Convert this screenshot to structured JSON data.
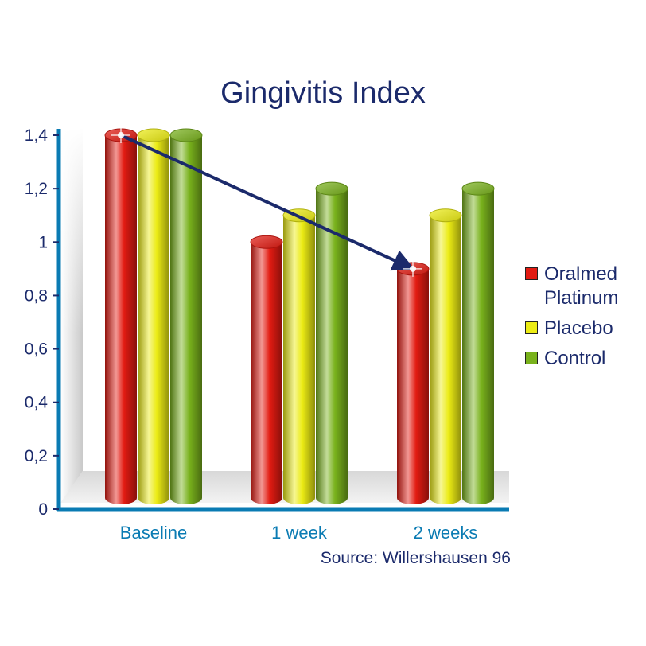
{
  "chart_data": {
    "type": "bar",
    "title": "Gingivitis Index",
    "categories": [
      "Baseline",
      "1 week",
      "2 weeks"
    ],
    "series": [
      {
        "name": "Oralmed Platinum",
        "values": [
          1.4,
          1.0,
          0.9
        ]
      },
      {
        "name": "Placebo",
        "values": [
          1.4,
          1.1,
          1.1
        ]
      },
      {
        "name": "Control",
        "values": [
          1.4,
          1.2,
          1.2
        ]
      }
    ],
    "y_ticks": [
      "0",
      "0,2",
      "0,4",
      "0,6",
      "0,8",
      "1",
      "1,2",
      "1,4"
    ],
    "ylim": [
      0,
      1.4
    ],
    "legend_position": "right",
    "source": "Source: Willershausen 96",
    "annotation": "arrow from Oralmed Platinum at Baseline to Oralmed Platinum at 2 weeks"
  },
  "colors": {
    "series": [
      "#e21b12",
      "#ecec14",
      "#79b21c"
    ],
    "axis": "#0a7bb3",
    "text": "#1b2a6b",
    "arrow": "#1b2a6b"
  }
}
